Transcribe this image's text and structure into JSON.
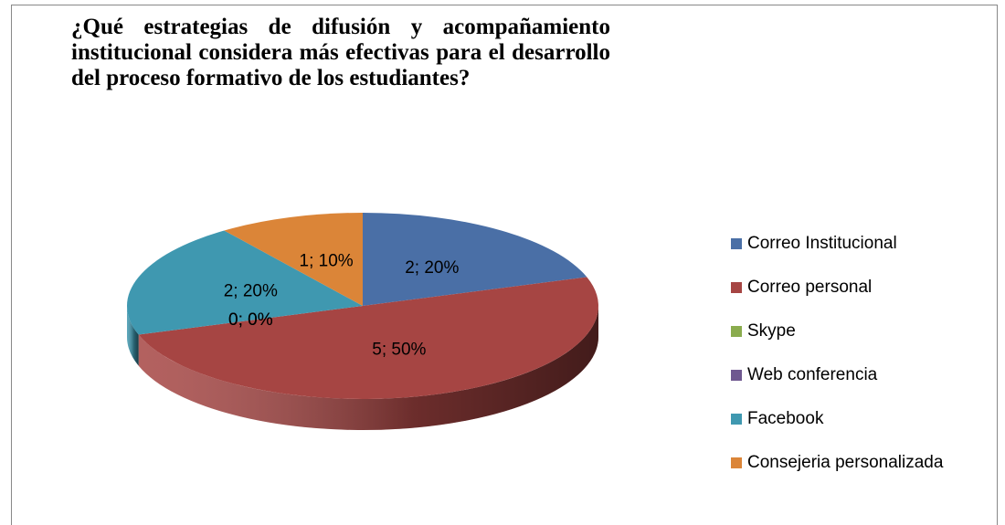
{
  "chart_data": {
    "type": "pie",
    "title": "¿Qué estrategias de difusión y acompañamiento institucional considera más efectivas para el desarrollo del proceso formativo de los estudiantes?",
    "categories": [
      "Correo Institucional",
      "Correo personal",
      "Skype",
      "Web conferencia",
      "Facebook",
      "Consejeria personalizada"
    ],
    "values": [
      2,
      5,
      0,
      0,
      2,
      1
    ],
    "value_labels": [
      "2; 20%",
      "5; 50%",
      "0; 0%",
      "0; 0%",
      "2; 20%",
      "1; 10%"
    ],
    "colors": [
      "#4a6fa6",
      "#a64543",
      "#8aac4e",
      "#6f5890",
      "#3f98b0",
      "#db8538"
    ],
    "legend": "right"
  }
}
